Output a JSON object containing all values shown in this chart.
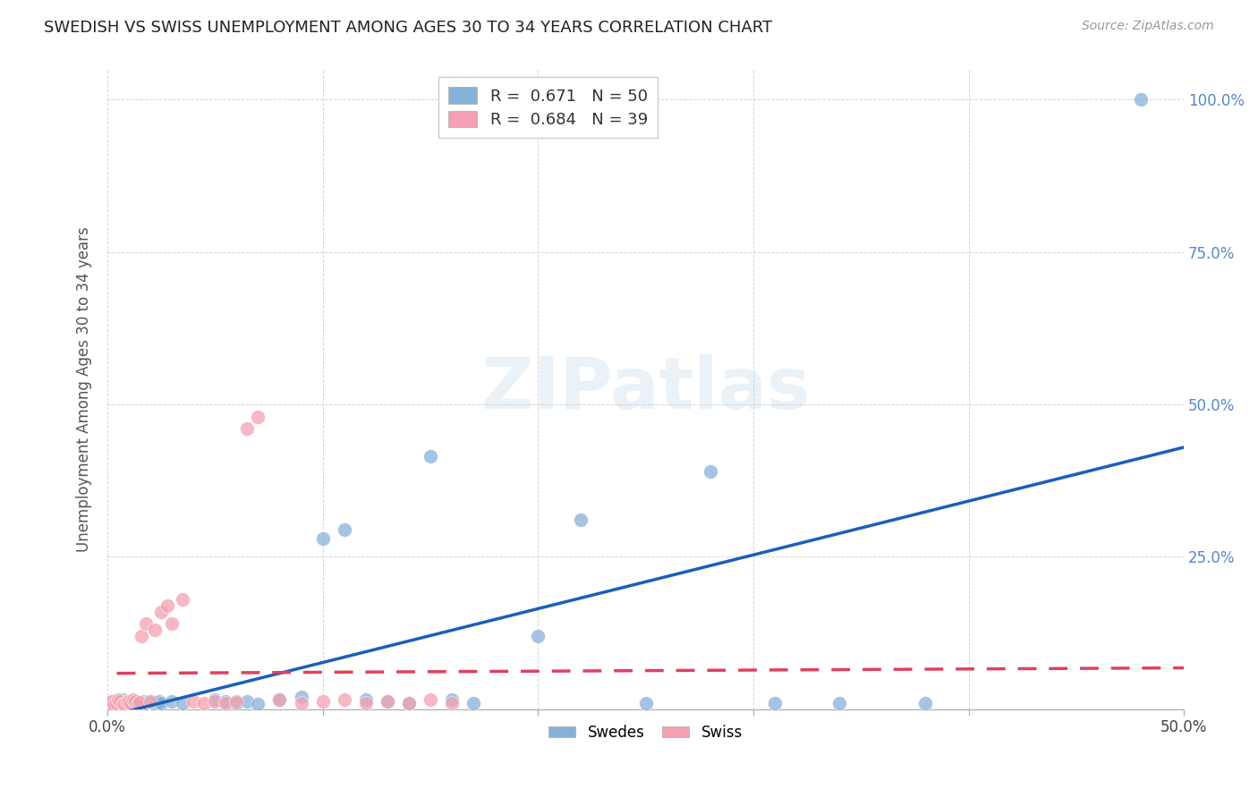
{
  "title": "SWEDISH VS SWISS UNEMPLOYMENT AMONG AGES 30 TO 34 YEARS CORRELATION CHART",
  "source": "Source: ZipAtlas.com",
  "ylabel": "Unemployment Among Ages 30 to 34 years",
  "x_min": 0.0,
  "x_max": 0.5,
  "y_min": 0.0,
  "y_max": 1.05,
  "swedes_color": "#87b0d8",
  "swiss_color": "#f4a0b0",
  "swedes_line_color": "#1a5fb8",
  "swiss_line_color": "#e04060",
  "legend_R_swedes": "R =  0.671",
  "legend_N_swedes": "N = 50",
  "legend_R_swiss": "R =  0.684",
  "legend_N_swiss": "N = 39",
  "watermark": "ZIPatlas",
  "swedes_x": [
    0.001,
    0.002,
    0.003,
    0.004,
    0.005,
    0.006,
    0.007,
    0.008,
    0.009,
    0.01,
    0.011,
    0.012,
    0.013,
    0.014,
    0.015,
    0.016,
    0.017,
    0.018,
    0.019,
    0.02,
    0.021,
    0.022,
    0.023,
    0.024,
    0.025,
    0.03,
    0.035,
    0.05,
    0.055,
    0.06,
    0.065,
    0.07,
    0.08,
    0.09,
    0.1,
    0.11,
    0.12,
    0.13,
    0.14,
    0.15,
    0.16,
    0.17,
    0.2,
    0.22,
    0.25,
    0.28,
    0.31,
    0.34,
    0.38,
    0.48
  ],
  "swedes_y": [
    0.01,
    0.012,
    0.008,
    0.01,
    0.007,
    0.012,
    0.015,
    0.009,
    0.011,
    0.013,
    0.01,
    0.012,
    0.008,
    0.01,
    0.009,
    0.011,
    0.013,
    0.01,
    0.012,
    0.011,
    0.01,
    0.009,
    0.011,
    0.013,
    0.01,
    0.012,
    0.01,
    0.015,
    0.012,
    0.01,
    0.013,
    0.009,
    0.015,
    0.02,
    0.28,
    0.295,
    0.015,
    0.012,
    0.01,
    0.415,
    0.015,
    0.01,
    0.12,
    0.31,
    0.01,
    0.39,
    0.01,
    0.01,
    0.01,
    1.0
  ],
  "swiss_x": [
    0.001,
    0.002,
    0.003,
    0.004,
    0.005,
    0.006,
    0.007,
    0.008,
    0.009,
    0.01,
    0.011,
    0.012,
    0.013,
    0.014,
    0.015,
    0.016,
    0.018,
    0.02,
    0.022,
    0.025,
    0.028,
    0.03,
    0.035,
    0.04,
    0.045,
    0.05,
    0.055,
    0.06,
    0.065,
    0.07,
    0.08,
    0.09,
    0.1,
    0.11,
    0.12,
    0.13,
    0.14,
    0.15,
    0.16
  ],
  "swiss_y": [
    0.01,
    0.012,
    0.008,
    0.01,
    0.015,
    0.012,
    0.009,
    0.008,
    0.011,
    0.013,
    0.01,
    0.015,
    0.012,
    0.009,
    0.011,
    0.12,
    0.14,
    0.012,
    0.13,
    0.16,
    0.17,
    0.14,
    0.18,
    0.012,
    0.01,
    0.012,
    0.01,
    0.012,
    0.46,
    0.48,
    0.015,
    0.01,
    0.012,
    0.015,
    0.01,
    0.012,
    0.01,
    0.015,
    0.01
  ]
}
